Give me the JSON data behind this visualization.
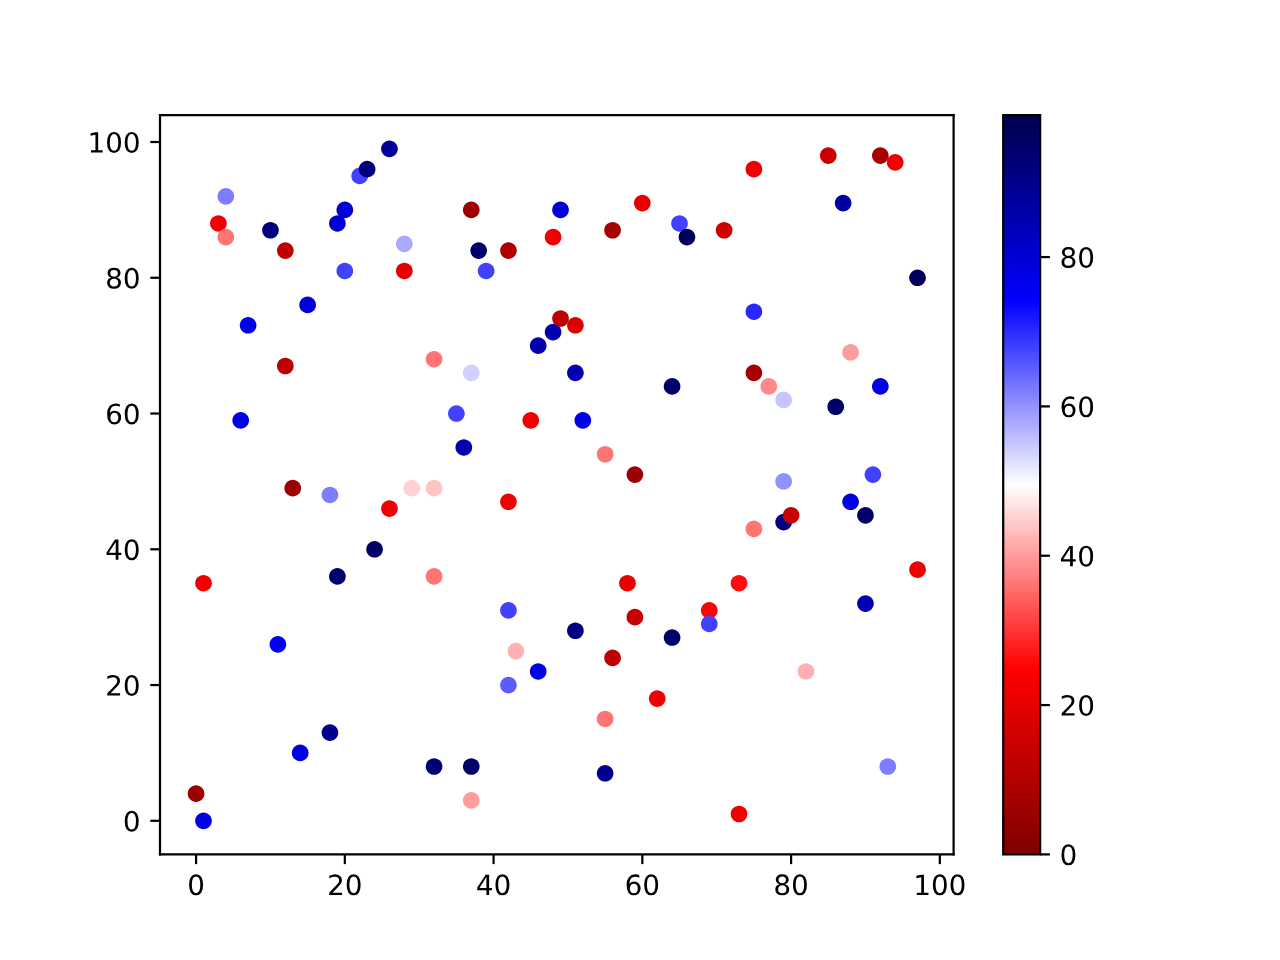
{
  "chart_data": {
    "type": "scatter",
    "x": [
      0,
      1,
      1,
      3,
      4,
      4,
      6,
      7,
      10,
      12,
      12,
      13,
      11,
      14,
      15,
      18,
      18,
      19,
      19,
      20,
      20,
      22,
      23,
      24,
      26,
      26,
      28,
      28,
      29,
      32,
      32,
      32,
      32,
      35,
      36,
      37,
      37,
      37,
      37,
      38,
      39,
      42,
      42,
      42,
      43,
      42,
      46,
      45,
      46,
      48,
      48,
      49,
      49,
      51,
      51,
      52,
      51,
      55,
      55,
      55,
      56,
      56,
      58,
      59,
      59,
      60,
      62,
      64,
      64,
      65,
      66,
      71,
      75,
      85,
      92,
      94,
      87,
      97,
      75,
      75,
      77,
      79,
      88,
      86,
      92,
      79,
      91,
      88,
      90,
      79,
      80,
      75,
      97,
      90,
      73,
      69,
      69,
      82,
      93,
      73
    ],
    "values": [
      4,
      0,
      35,
      88,
      92,
      86,
      59,
      73,
      87,
      84,
      67,
      49,
      26,
      10,
      76,
      48,
      13,
      36,
      88,
      90,
      81,
      95,
      96,
      40,
      99,
      46,
      85,
      81,
      49,
      49,
      68,
      36,
      8,
      60,
      55,
      90,
      66,
      8,
      3,
      84,
      81,
      84,
      47,
      31,
      25,
      20,
      22,
      59,
      70,
      86,
      72,
      74,
      90,
      73,
      66,
      59,
      28,
      54,
      15,
      7,
      87,
      24,
      35,
      51,
      30,
      91,
      18,
      27,
      64,
      88,
      86,
      87,
      96,
      98,
      98,
      97,
      91,
      80,
      75,
      66,
      64,
      62,
      69,
      61,
      64,
      50,
      51,
      47,
      45,
      44,
      45,
      43,
      37,
      32,
      35,
      31,
      29,
      22,
      8,
      1
    ],
    "cvalues": [
      6,
      78,
      22,
      22,
      62,
      36,
      78,
      78,
      92,
      12,
      12,
      6,
      75,
      78,
      80,
      62,
      90,
      95,
      80,
      80,
      68,
      68,
      92,
      95,
      88,
      22,
      58,
      20,
      45,
      44,
      36,
      36,
      93,
      68,
      85,
      6,
      54,
      95,
      40,
      95,
      68,
      10,
      22,
      68,
      42,
      65,
      78,
      22,
      85,
      22,
      85,
      12,
      80,
      18,
      85,
      78,
      92,
      36,
      36,
      90,
      8,
      12,
      20,
      6,
      14,
      20,
      22,
      95,
      95,
      68,
      97,
      15,
      22,
      15,
      8,
      22,
      87,
      97,
      70,
      8,
      38,
      55,
      40,
      95,
      78,
      60,
      68,
      78,
      95,
      92,
      14,
      36,
      22,
      85,
      26,
      25,
      68,
      42,
      62,
      22
    ],
    "xlim": [
      -4.85,
      101.85
    ],
    "ylim": [
      -4.95,
      103.95
    ],
    "xticks": [
      0,
      20,
      40,
      60,
      80,
      100
    ],
    "yticks": [
      0,
      20,
      40,
      60,
      80,
      100
    ],
    "clim": [
      0,
      99
    ],
    "cticks": [
      0,
      20,
      40,
      60,
      80
    ],
    "marker": "circle"
  }
}
